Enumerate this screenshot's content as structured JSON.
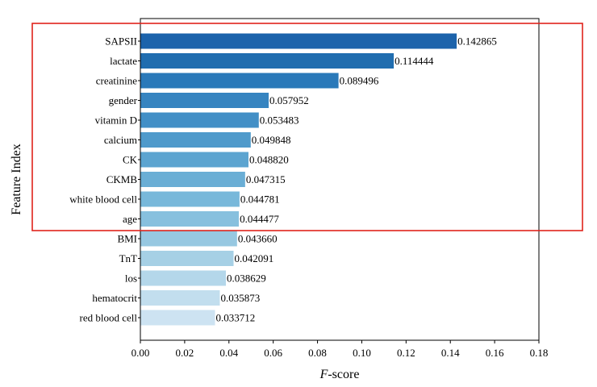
{
  "chart_data": {
    "type": "bar",
    "orientation": "horizontal",
    "categories": [
      "SAPSII",
      "lactate",
      "creatinine",
      "gender",
      "vitamin D",
      "calcium",
      "CK",
      "CKMB",
      "white blood cell",
      "age",
      "BMI",
      "TnT",
      "los",
      "hematocrit",
      "red blood cell"
    ],
    "values": [
      0.142865,
      0.114444,
      0.089496,
      0.057952,
      0.053483,
      0.049848,
      0.04882,
      0.047315,
      0.044781,
      0.044477,
      0.04366,
      0.042091,
      0.038629,
      0.035873,
      0.033712
    ],
    "value_labels": [
      "0.142865",
      "0.114444",
      "0.089496",
      "0.057952",
      "0.053483",
      "0.049848",
      "0.048820",
      "0.047315",
      "0.044781",
      "0.044477",
      "0.043660",
      "0.042091",
      "0.038629",
      "0.035873",
      "0.033712"
    ],
    "xlabel_italic": "F",
    "xlabel_rest": "-score",
    "ylabel": "Feature Index",
    "xlim": [
      0,
      0.18
    ],
    "x_ticks": [
      0,
      0.02,
      0.04,
      0.06,
      0.08,
      0.1,
      0.12,
      0.14,
      0.16,
      0.18
    ],
    "x_tick_labels": [
      "0.00",
      "0.02",
      "0.04",
      "0.06",
      "0.08",
      "0.10",
      "0.12",
      "0.14",
      "0.16",
      "0.18"
    ],
    "grid": false,
    "colors": [
      "#1c63ab",
      "#206daf",
      "#2a79b9",
      "#3684c0",
      "#428fc6",
      "#4f9acb",
      "#5ca4d0",
      "#6aaed5",
      "#78b8da",
      "#87c0de",
      "#97c8e1",
      "#a6d0e5",
      "#b4d7ea",
      "#c2deee",
      "#cde3f2"
    ],
    "highlight": {
      "color": "#e0231c",
      "categories": [
        "SAPSII",
        "lactate",
        "creatinine",
        "gender",
        "vitamin D",
        "calcium",
        "CK",
        "CKMB",
        "white blood cell",
        "age"
      ]
    }
  }
}
